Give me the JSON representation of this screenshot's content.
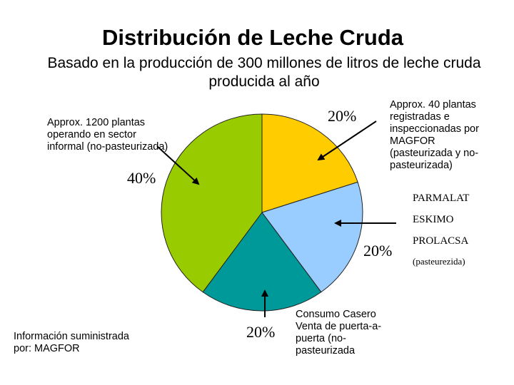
{
  "title": "Distribución de Leche Cruda",
  "subtitle": "Basado en la producción de 300 millones de litros de leche cruda producida al año",
  "chart_data": {
    "type": "pie",
    "start_angle_deg": 0,
    "direction": "clockwise",
    "slices": [
      {
        "label": "20%",
        "value": 20,
        "color": "#ffcc00"
      },
      {
        "label": "20%",
        "value": 20,
        "color": "#99ccff"
      },
      {
        "label": "20%",
        "value": 20,
        "color": "#009999"
      },
      {
        "label": "40%",
        "value": 40,
        "color": "#99cc00"
      }
    ]
  },
  "annotations": {
    "informal": "Approx. 1200 plantas operando en sector informal (no-pasteurizada)",
    "registered": "Approx. 40 plantas registradas e inspeccionadas por MAGFOR (pasteurizada y no-pasteurizada)",
    "brands": [
      "PARMALAT",
      "ESKIMO",
      "PROLACSA"
    ],
    "brands_note": "(pasteurezida)",
    "home": "Consumo Casero Venta de puerta-a-puerta (no-pasteurizada"
  },
  "source": "Información suministrada por: MAGFOR"
}
